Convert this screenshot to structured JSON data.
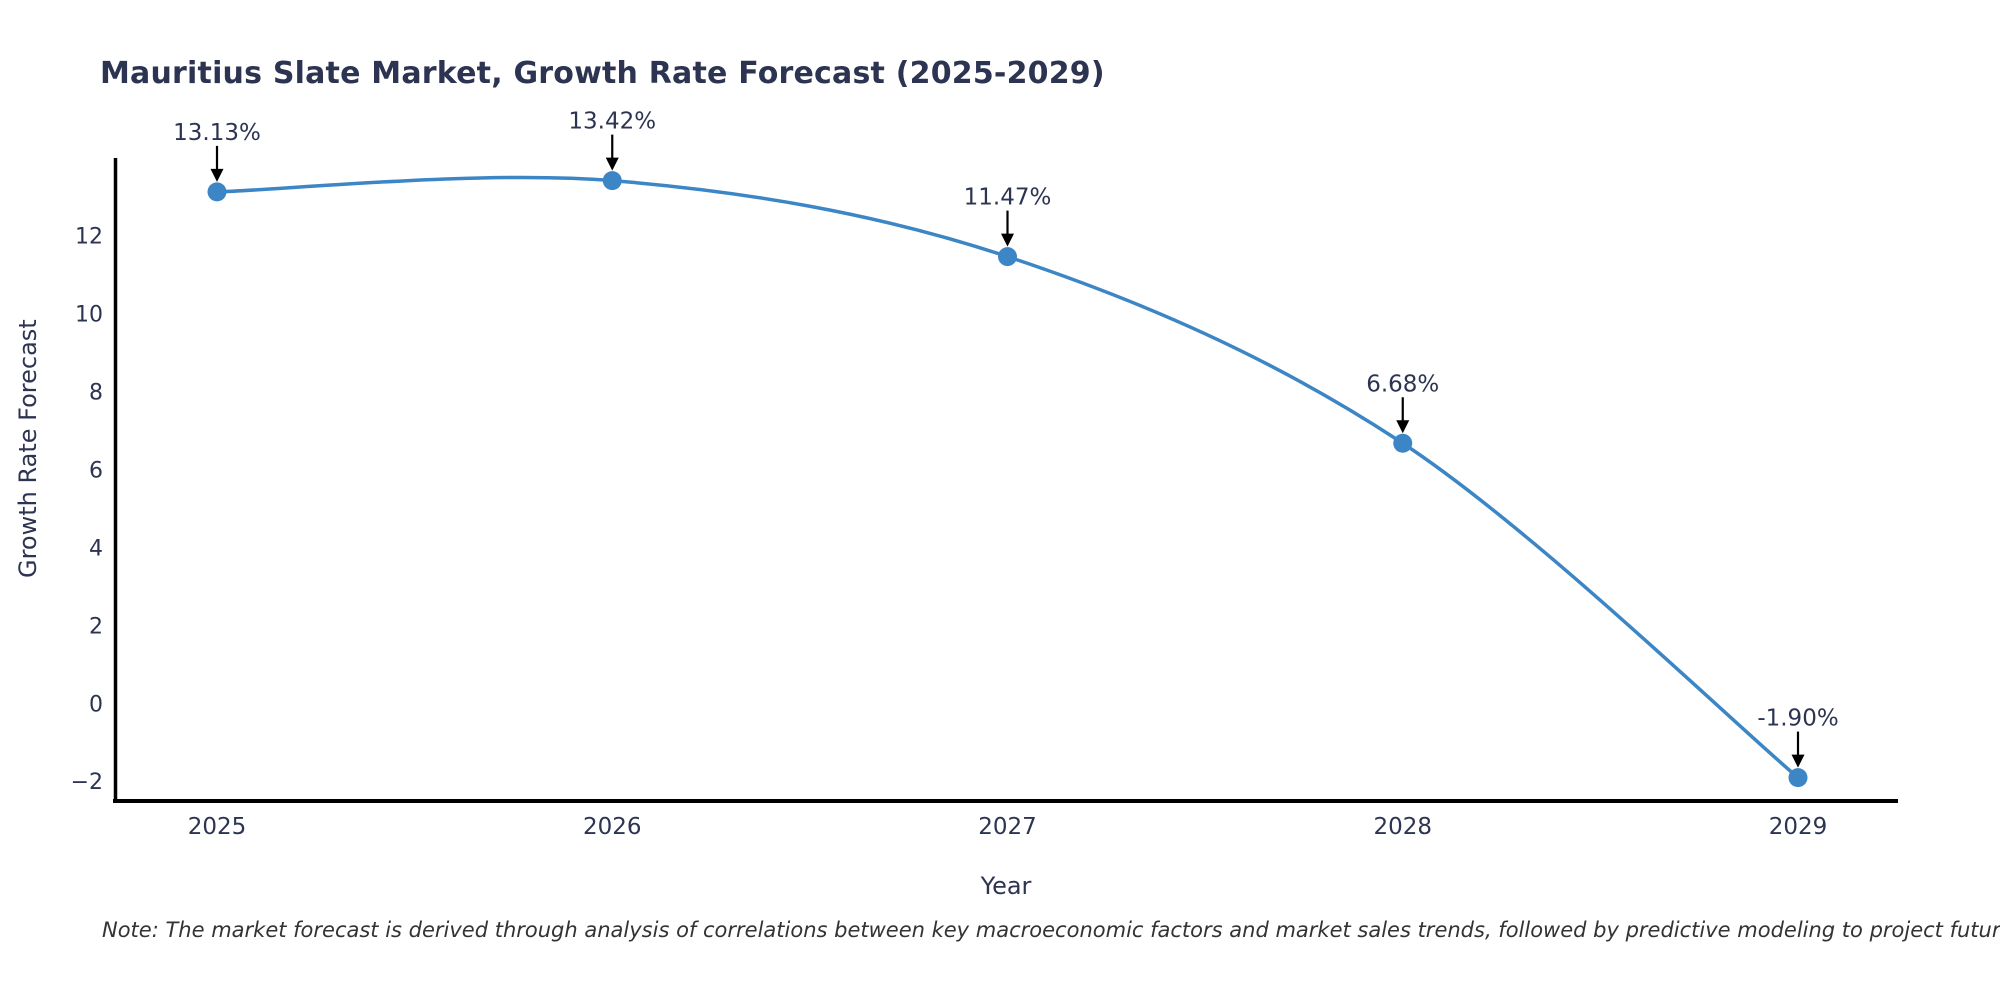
{
  "chart": {
    "title": "Mauritius Slate Market, Growth Rate Forecast (2025-2029)",
    "ylabel": "Growth Rate Forecast",
    "xlabel": "Year",
    "note": "Note: The market forecast is derived through analysis of correlations between key macroeconomic factors and market sales trends, followed by predictive modeling to project future sales"
  },
  "chart_data": {
    "type": "line",
    "line_shape": "spline",
    "title": "Mauritius Slate Market, Growth Rate Forecast (2025-2029)",
    "xlabel": "Year",
    "ylabel": "Growth Rate Forecast",
    "x": [
      "2025",
      "2026",
      "2027",
      "2028",
      "2029"
    ],
    "values": [
      13.13,
      13.42,
      11.47,
      6.68,
      -1.9
    ],
    "point_labels": [
      "13.13%",
      "13.42%",
      "11.47%",
      "6.68%",
      "-1.90%"
    ],
    "yticks": [
      -2,
      0,
      2,
      4,
      6,
      8,
      10,
      12
    ],
    "ylim": [
      -2.5,
      14.0
    ],
    "grid": false,
    "legend": "none",
    "colors": {
      "line": "#3c86c6",
      "marker": "#3c86c6",
      "text_dark": "#2d3452",
      "axis": "#000000",
      "arrow": "#000000",
      "note_text": "#333333",
      "background": "#ffffff"
    }
  }
}
